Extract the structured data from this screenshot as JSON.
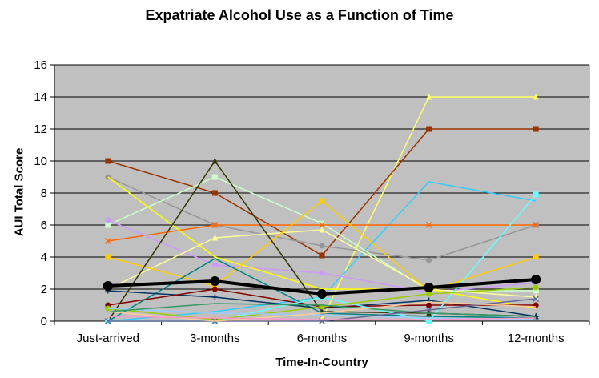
{
  "chart_data": {
    "type": "line",
    "title": "Expatriate Alcohol Use as a Function of Time",
    "xlabel": "Time-In-Country",
    "ylabel": "AUI Total Score",
    "categories": [
      "Just-arrived",
      "3-months",
      "6-months",
      "9-months",
      "12-months"
    ],
    "ylim": [
      0,
      16
    ],
    "yticks": [
      0,
      2,
      4,
      6,
      8,
      10,
      12,
      14,
      16
    ],
    "grid": true,
    "legend": "none",
    "plot_background": "#c0c0c0",
    "series": [
      {
        "values": [
          0,
          0,
          0.1,
          14,
          14
        ],
        "color": "#ffff66",
        "marker": "triangle",
        "width": 1.5
      },
      {
        "values": [
          10,
          8,
          4.1,
          12,
          12
        ],
        "color": "#993300",
        "marker": "square",
        "width": 1.5
      },
      {
        "values": [
          0,
          0.6,
          1.5,
          8.7,
          7.5
        ],
        "color": "#33ccff",
        "marker": "none",
        "width": 1.5
      },
      {
        "values": [
          9,
          6,
          4.7,
          3.8,
          6
        ],
        "color": "#969696",
        "marker": "circle",
        "width": 1.5
      },
      {
        "values": [
          6,
          9,
          6.1,
          1.9,
          1.9
        ],
        "color": "#ccffcc",
        "marker": "square",
        "width": 1.5
      },
      {
        "values": [
          5,
          6,
          6,
          6,
          6
        ],
        "color": "#ff6600",
        "marker": "x",
        "width": 1.5
      },
      {
        "values": [
          6.3,
          3.5,
          3,
          1.8,
          2.4
        ],
        "color": "#cc99ff",
        "marker": "circle",
        "width": 1.5
      },
      {
        "values": [
          9,
          4,
          2,
          2,
          0.8
        ],
        "color": "#ffff00",
        "marker": "none",
        "width": 1.5
      },
      {
        "values": [
          2,
          5.2,
          5.7,
          2,
          1.5
        ],
        "color": "#ffff99",
        "marker": "triangle",
        "width": 1.5
      },
      {
        "values": [
          4,
          2.2,
          7.5,
          1.9,
          4
        ],
        "color": "#ffcc00",
        "marker": "square",
        "width": 1.5
      },
      {
        "values": [
          0,
          10,
          0.6,
          0.5,
          0.3
        ],
        "color": "#333300",
        "marker": "triangle",
        "width": 1.5
      },
      {
        "values": [
          0,
          3.9,
          0.5,
          0.3,
          0.2
        ],
        "color": "#008080",
        "marker": "none",
        "width": 1.5
      },
      {
        "values": [
          1.9,
          1.5,
          0.8,
          1.3,
          0.3
        ],
        "color": "#003366",
        "marker": "plus",
        "width": 1.5
      },
      {
        "values": [
          1,
          2,
          0.9,
          1,
          1
        ],
        "color": "#800000",
        "marker": "circle",
        "width": 1.5
      },
      {
        "values": [
          0,
          0,
          1.5,
          0,
          7.9
        ],
        "color": "#66ffff",
        "marker": "square",
        "width": 1.5
      },
      {
        "values": [
          0.8,
          0.1,
          0.9,
          1.7,
          2.1
        ],
        "color": "#99cc00",
        "marker": "circle",
        "width": 1.5
      },
      {
        "values": [
          0.8,
          0.5,
          0.4,
          0.2,
          0.1
        ],
        "color": "#99ccff",
        "marker": "none",
        "width": 1.5
      },
      {
        "values": [
          0.6,
          1.1,
          1,
          0.5,
          0.3
        ],
        "color": "#339966",
        "marker": "none",
        "width": 1.5
      },
      {
        "values": [
          0,
          0,
          0,
          0.7,
          1.4
        ],
        "color": "#666699",
        "marker": "x",
        "width": 1.5
      },
      {
        "values": [
          0.6,
          0,
          0.5,
          1.2,
          0.9
        ],
        "color": "#ffcc99",
        "marker": "none",
        "width": 1.5
      },
      {
        "values": [
          0.3,
          0.2,
          0.1,
          0.1,
          0.2
        ],
        "color": "#ff99cc",
        "marker": "none",
        "width": 1.5
      },
      {
        "values": [
          2.2,
          2.5,
          1.7,
          2.1,
          2.6
        ],
        "color": "#000000",
        "marker": "circle",
        "width": 4
      }
    ]
  }
}
